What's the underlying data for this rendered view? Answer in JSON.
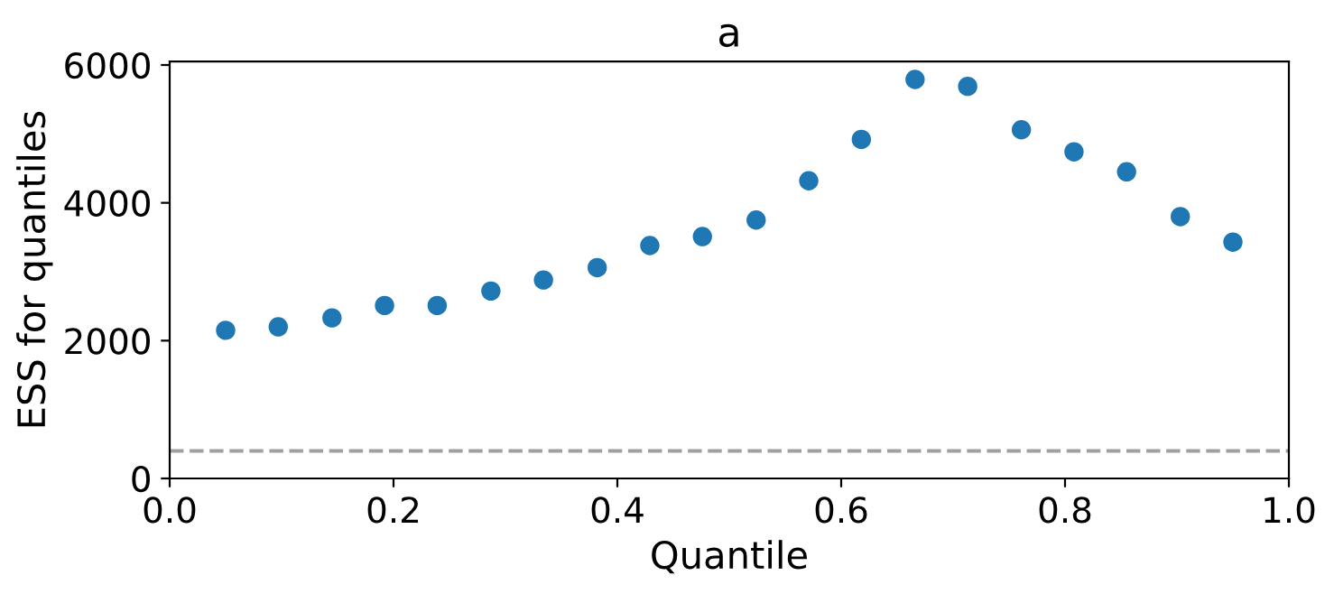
{
  "chart_data": {
    "type": "scatter",
    "title": "a",
    "xlabel": "Quantile",
    "ylabel": "ESS for quantiles",
    "x": [
      0.05,
      0.097,
      0.145,
      0.192,
      0.239,
      0.287,
      0.334,
      0.382,
      0.429,
      0.476,
      0.524,
      0.571,
      0.618,
      0.666,
      0.713,
      0.761,
      0.808,
      0.855,
      0.903,
      0.95
    ],
    "series": [
      {
        "color": "#1f77b4",
        "values": [
          2150,
          2200,
          2330,
          2510,
          2510,
          2720,
          2880,
          3060,
          3380,
          3510,
          3750,
          4320,
          4920,
          5790,
          5690,
          5060,
          4740,
          4450,
          3800,
          3430
        ]
      }
    ],
    "xlim": [
      0,
      1
    ],
    "xticks": [
      {
        "value": 0,
        "label": "0.0"
      },
      0.2,
      0.4,
      0.6,
      0.8,
      {
        "value": 1,
        "label": "1.0"
      }
    ],
    "ylim": [
      0,
      6050
    ],
    "yticks": [
      0,
      2000,
      4000,
      6000
    ],
    "ref_lines": [
      {
        "axis": "y",
        "value": 400,
        "color": "#a0a0a0",
        "line_style": "dashed"
      }
    ],
    "marker": "circle",
    "grid": false,
    "legend": false
  }
}
